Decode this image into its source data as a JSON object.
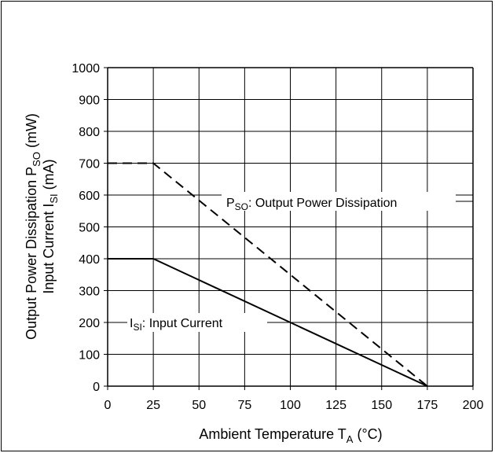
{
  "chart_data": {
    "type": "line",
    "xlabel": {
      "main": "Ambient Temperature T",
      "sub": "A",
      "tail": " (°C)"
    },
    "ylabel_line1": {
      "main": "Output Power Dissipation P",
      "sub": "SO",
      "tail": " (mW)"
    },
    "ylabel_line2": {
      "main": "Input Current I",
      "sub": "SI",
      "tail": " (mA)"
    },
    "xlim": [
      0,
      200
    ],
    "ylim": [
      0,
      1000
    ],
    "x_ticks": [
      0,
      25,
      50,
      75,
      100,
      125,
      150,
      175,
      200
    ],
    "y_ticks": [
      0,
      100,
      200,
      300,
      400,
      500,
      600,
      700,
      800,
      900,
      1000
    ],
    "x_tick_labels": [
      "0",
      "25",
      "50",
      "75",
      "100",
      "125",
      "150",
      "175",
      "200"
    ],
    "y_tick_labels": [
      "0",
      "100",
      "200",
      "300",
      "400",
      "500",
      "600",
      "700",
      "800",
      "900",
      "1000"
    ],
    "grid": true,
    "series": [
      {
        "label": {
          "main": "P",
          "sub": "SO",
          "tail": ": Output Power Dissipation"
        },
        "style": "dashed",
        "color": "#000000",
        "points": [
          [
            0,
            700
          ],
          [
            25,
            700
          ],
          [
            175,
            0
          ]
        ]
      },
      {
        "label": {
          "main": "I",
          "sub": "SI",
          "tail": ": Input Current"
        },
        "style": "solid",
        "color": "#000000",
        "points": [
          [
            0,
            400
          ],
          [
            25,
            400
          ],
          [
            175,
            0
          ]
        ]
      }
    ]
  }
}
